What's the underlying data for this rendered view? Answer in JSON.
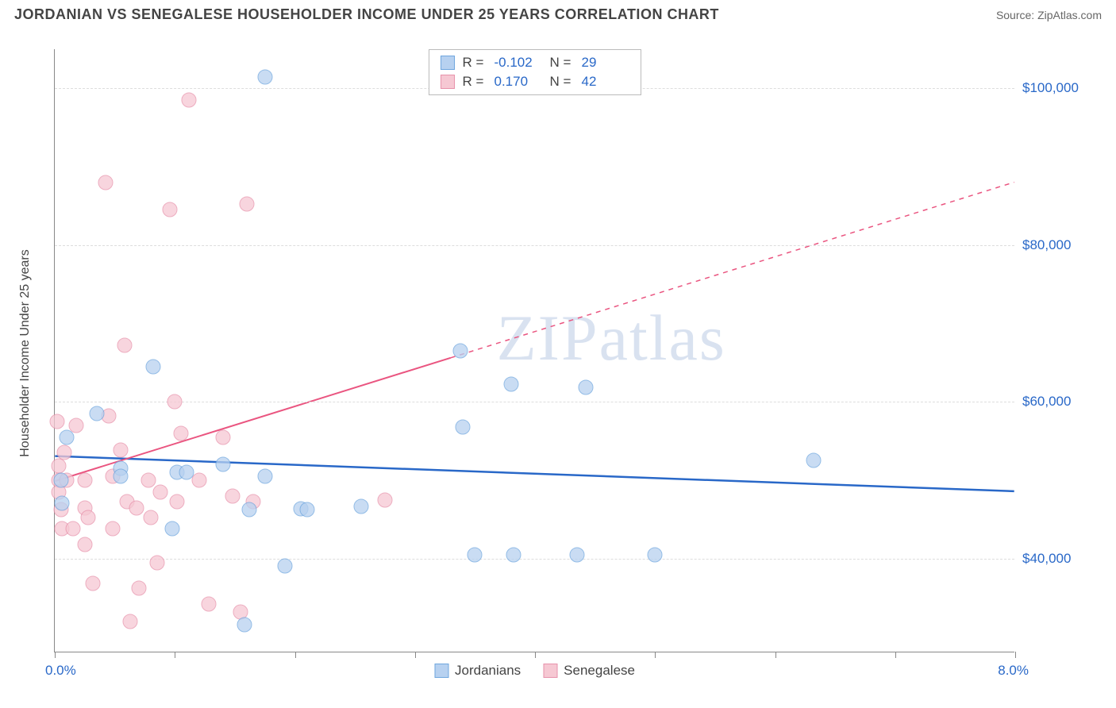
{
  "title": "JORDANIAN VS SENEGALESE HOUSEHOLDER INCOME UNDER 25 YEARS CORRELATION CHART",
  "source": "Source: ZipAtlas.com",
  "ylabel": "Householder Income Under 25 years",
  "watermark": "ZIPatlas",
  "chart": {
    "type": "scatter",
    "xlim": [
      0,
      8
    ],
    "ylim": [
      28000,
      105000
    ],
    "yticks": [
      {
        "v": 40000,
        "label": "$40,000"
      },
      {
        "v": 60000,
        "label": "$60,000"
      },
      {
        "v": 80000,
        "label": "$80,000"
      },
      {
        "v": 100000,
        "label": "$100,000"
      }
    ],
    "xticks": [
      0,
      1,
      2,
      3,
      4,
      5,
      6,
      7,
      8
    ],
    "xlabels": {
      "min": "0.0%",
      "max": "8.0%"
    },
    "grid_color": "#dddddd",
    "axis_color": "#888888",
    "background": "#ffffff",
    "marker_radius": 9.5
  },
  "series": [
    {
      "name": "Jordanians",
      "color_fill": "#b7d1f0",
      "color_stroke": "#6fa6de",
      "R": "-0.102",
      "N": "29",
      "trend": {
        "x1": 0,
        "y1": 53000,
        "x2": 8,
        "y2": 48500,
        "solid_until": 8,
        "stroke": "#2968c8",
        "width": 2.5
      },
      "points": [
        [
          0.05,
          50000
        ],
        [
          0.06,
          47000
        ],
        [
          0.1,
          55500
        ],
        [
          0.35,
          58500
        ],
        [
          0.55,
          51500
        ],
        [
          0.55,
          50500
        ],
        [
          0.82,
          64500
        ],
        [
          0.98,
          43800
        ],
        [
          1.02,
          51000
        ],
        [
          1.1,
          51000
        ],
        [
          1.4,
          52000
        ],
        [
          1.58,
          31500
        ],
        [
          1.62,
          46200
        ],
        [
          1.75,
          101500
        ],
        [
          1.75,
          50500
        ],
        [
          1.92,
          39000
        ],
        [
          2.05,
          46300
        ],
        [
          2.1,
          46200
        ],
        [
          2.55,
          46600
        ],
        [
          3.38,
          66500
        ],
        [
          3.4,
          56800
        ],
        [
          3.5,
          40500
        ],
        [
          3.8,
          62200
        ],
        [
          3.82,
          40500
        ],
        [
          4.35,
          40500
        ],
        [
          4.42,
          61800
        ],
        [
          5.0,
          40500
        ],
        [
          6.32,
          52500
        ]
      ]
    },
    {
      "name": "Senegalese",
      "color_fill": "#f6c8d3",
      "color_stroke": "#e792ab",
      "R": "0.170",
      "N": "42",
      "trend": {
        "x1": 0,
        "y1": 49800,
        "x2": 8,
        "y2": 88000,
        "solid_until": 3.3,
        "stroke": "#ea5580",
        "width": 2
      },
      "points": [
        [
          0.02,
          57500
        ],
        [
          0.03,
          51800
        ],
        [
          0.03,
          50000
        ],
        [
          0.03,
          48500
        ],
        [
          0.05,
          46200
        ],
        [
          0.06,
          43800
        ],
        [
          0.08,
          53500
        ],
        [
          0.1,
          50000
        ],
        [
          0.15,
          43800
        ],
        [
          0.18,
          57000
        ],
        [
          0.25,
          50000
        ],
        [
          0.25,
          46400
        ],
        [
          0.25,
          41800
        ],
        [
          0.28,
          45200
        ],
        [
          0.32,
          36800
        ],
        [
          0.42,
          88000
        ],
        [
          0.45,
          58200
        ],
        [
          0.48,
          50500
        ],
        [
          0.48,
          43800
        ],
        [
          0.55,
          53800
        ],
        [
          0.58,
          67200
        ],
        [
          0.6,
          47200
        ],
        [
          0.63,
          32000
        ],
        [
          0.68,
          46400
        ],
        [
          0.7,
          36200
        ],
        [
          0.78,
          50000
        ],
        [
          0.8,
          45200
        ],
        [
          0.85,
          39400
        ],
        [
          0.88,
          48500
        ],
        [
          0.96,
          84500
        ],
        [
          1.0,
          60000
        ],
        [
          1.02,
          47200
        ],
        [
          1.05,
          56000
        ],
        [
          1.12,
          98500
        ],
        [
          1.2,
          50000
        ],
        [
          1.28,
          34200
        ],
        [
          1.4,
          55500
        ],
        [
          1.48,
          48000
        ],
        [
          1.55,
          33200
        ],
        [
          1.6,
          85200
        ],
        [
          1.65,
          47200
        ],
        [
          2.75,
          47500
        ]
      ]
    }
  ],
  "legend": {
    "items": [
      "Jordanians",
      "Senegalese"
    ]
  }
}
